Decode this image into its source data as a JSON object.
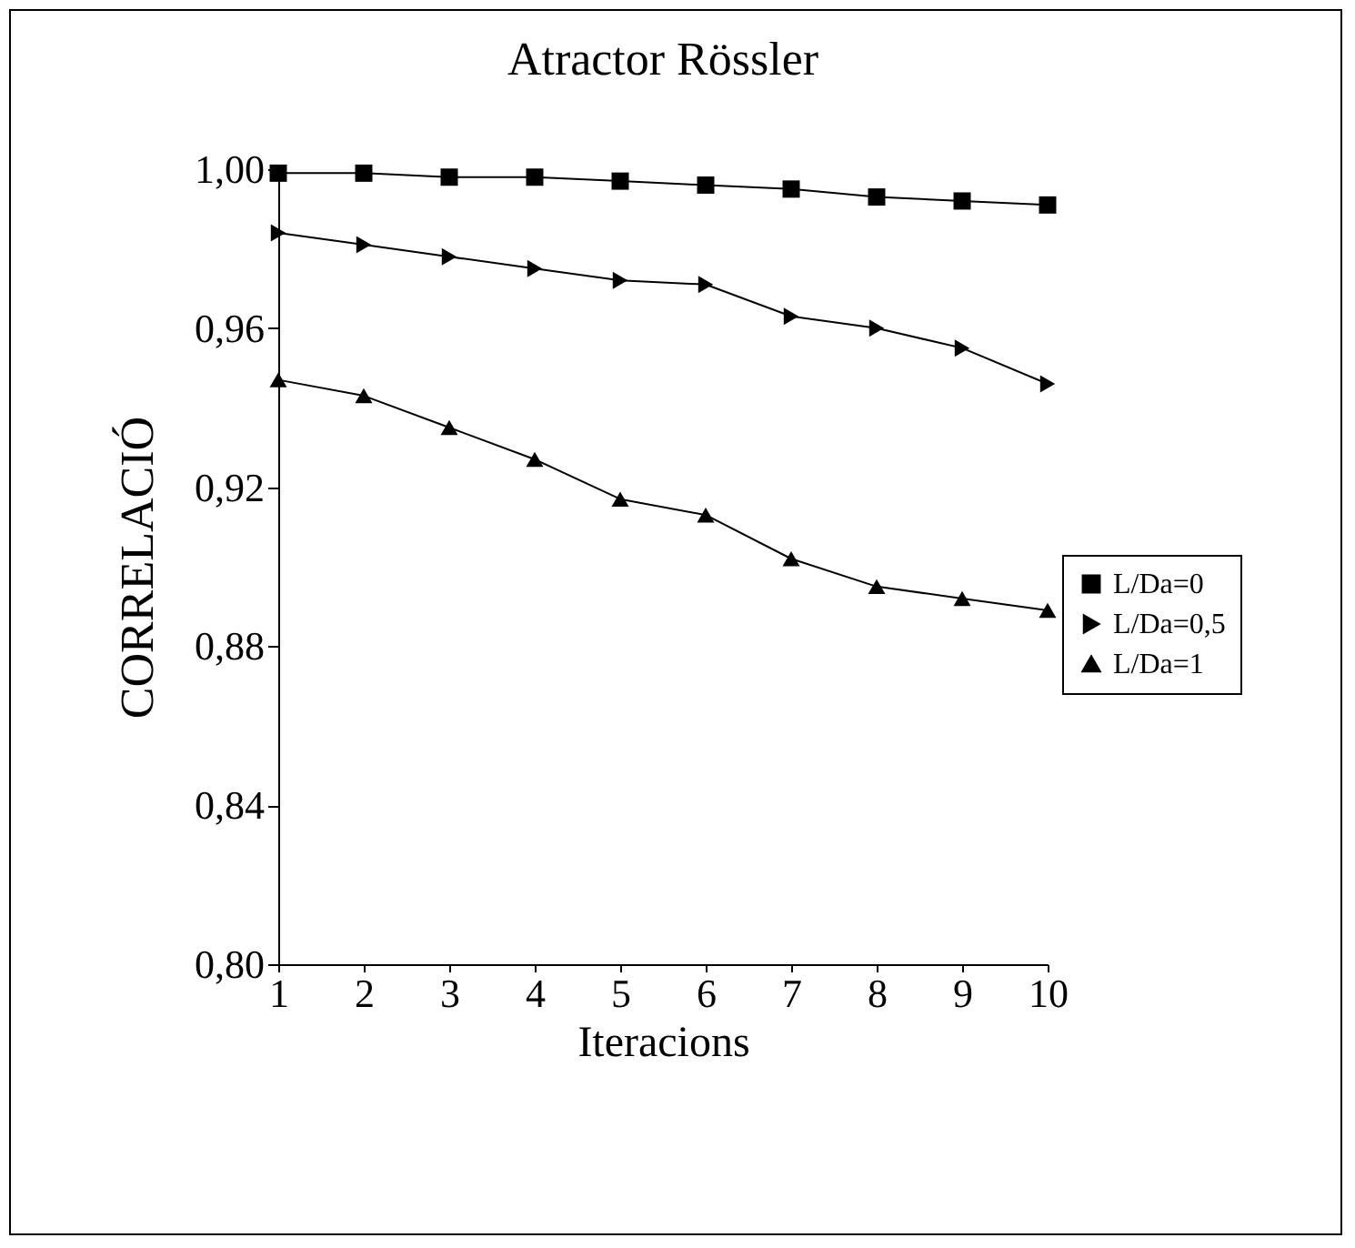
{
  "chart_data": {
    "type": "line",
    "title": "Atractor Rössler",
    "xlabel": "Iteracions",
    "ylabel": "CORRELACIÓ",
    "x": [
      1,
      2,
      3,
      4,
      5,
      6,
      7,
      8,
      9,
      10
    ],
    "series": [
      {
        "name": "L/Da=0",
        "color": "#000000",
        "marker": "square",
        "values": [
          0.999,
          0.999,
          0.998,
          0.998,
          0.997,
          0.996,
          0.995,
          0.993,
          0.992,
          0.991
        ]
      },
      {
        "name": "L/Da=0,5",
        "color": "#000000",
        "marker": "triangle-right",
        "values": [
          0.984,
          0.981,
          0.978,
          0.975,
          0.972,
          0.971,
          0.963,
          0.96,
          0.955,
          0.946
        ]
      },
      {
        "name": "L/Da=1",
        "color": "#000000",
        "marker": "triangle",
        "values": [
          0.947,
          0.943,
          0.935,
          0.927,
          0.917,
          0.913,
          0.902,
          0.895,
          0.892,
          0.889
        ]
      }
    ],
    "xlim": [
      1,
      10
    ],
    "xticks": [
      1,
      2,
      3,
      4,
      5,
      6,
      7,
      8,
      9,
      10
    ],
    "ylim": [
      0.8,
      1.0
    ],
    "yticks": [
      {
        "value": 0.8,
        "label": "0,80"
      },
      {
        "value": 0.84,
        "label": "0,84"
      },
      {
        "value": 0.88,
        "label": "0,88"
      },
      {
        "value": 0.92,
        "label": "0,92"
      },
      {
        "value": 0.96,
        "label": "0,96"
      },
      {
        "value": 1.0,
        "label": "1,00"
      }
    ],
    "grid": false,
    "legend": "right",
    "line_style": "solid"
  }
}
